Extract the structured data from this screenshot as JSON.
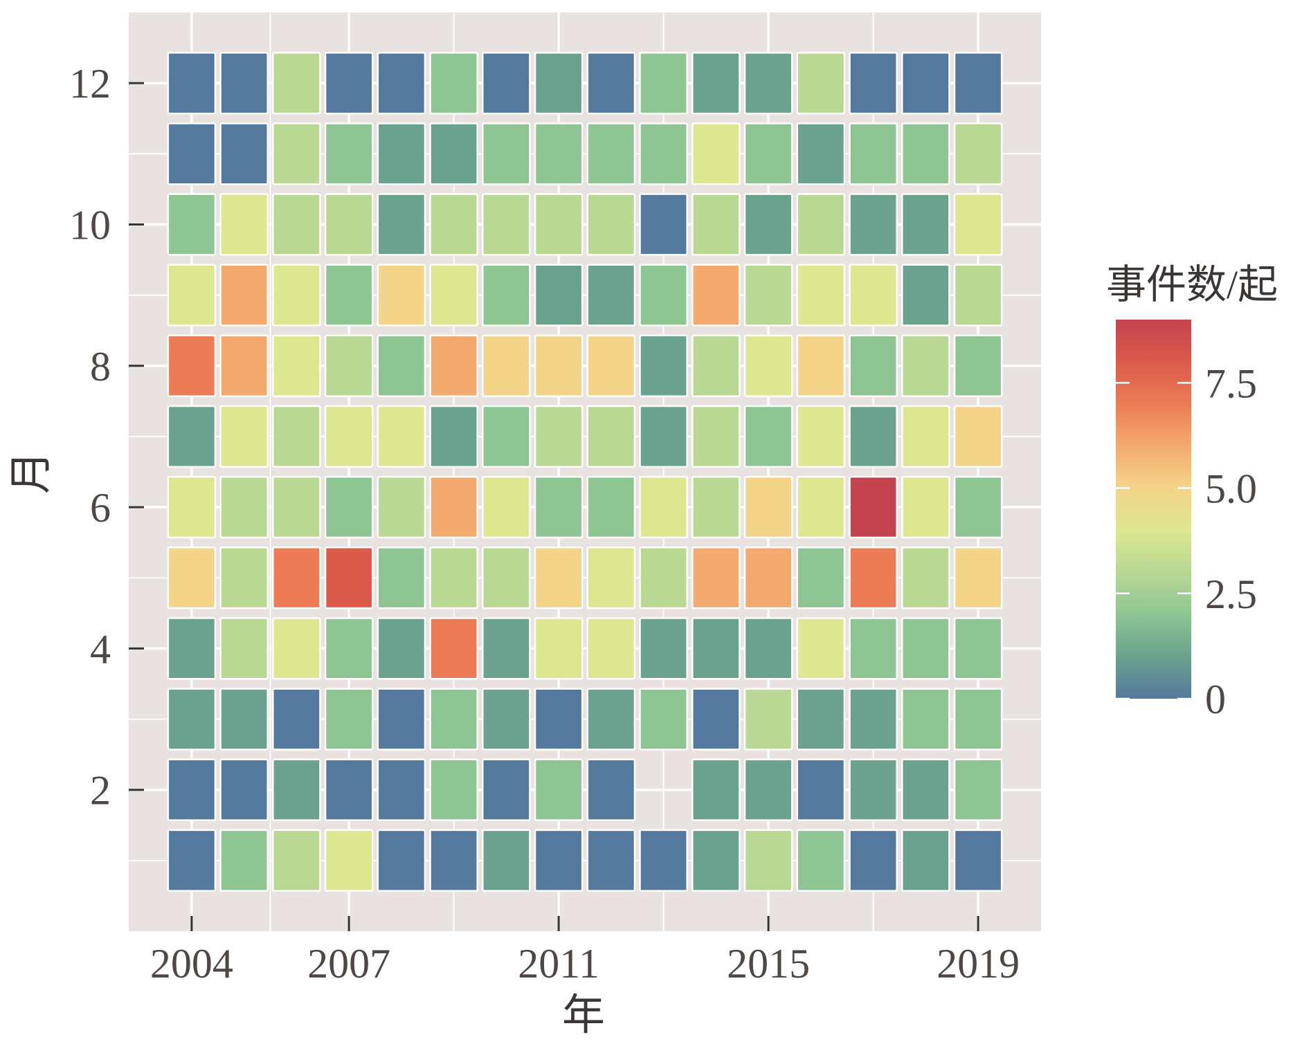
{
  "chart_data": {
    "type": "heatmap",
    "xlabel": "年",
    "ylabel": "月",
    "x": [
      2004,
      2005,
      2006,
      2007,
      2008,
      2009,
      2010,
      2011,
      2012,
      2013,
      2014,
      2015,
      2016,
      2017,
      2018,
      2019
    ],
    "y": [
      1,
      2,
      3,
      4,
      5,
      6,
      7,
      8,
      9,
      10,
      11,
      12
    ],
    "z": [
      [
        0,
        2,
        3,
        4,
        0,
        0,
        1,
        0,
        0,
        0,
        1,
        3,
        2,
        0,
        1,
        0
      ],
      [
        0,
        0,
        1,
        0,
        0,
        2,
        0,
        2,
        0,
        null,
        1,
        1,
        0,
        1,
        1,
        2
      ],
      [
        1,
        1,
        0,
        2,
        0,
        2,
        1,
        0,
        1,
        2,
        0,
        3,
        1,
        1,
        2,
        2
      ],
      [
        1,
        3,
        4,
        2,
        1,
        7,
        1,
        4,
        4,
        1,
        1,
        1,
        4,
        2,
        2,
        2
      ],
      [
        5,
        3,
        7,
        8,
        2,
        3,
        3,
        5,
        4,
        3,
        6,
        6,
        2,
        7,
        3,
        5
      ],
      [
        4,
        3,
        3,
        2,
        3,
        6,
        4,
        2,
        2,
        4,
        3,
        5,
        4,
        9,
        4,
        2
      ],
      [
        1,
        4,
        3,
        4,
        4,
        1,
        2,
        3,
        3,
        1,
        3,
        2,
        4,
        1,
        4,
        5
      ],
      [
        7,
        6,
        4,
        3,
        2,
        6,
        5,
        5,
        5,
        1,
        3,
        4,
        5,
        2,
        3,
        2
      ],
      [
        4,
        6,
        4,
        2,
        5,
        4,
        2,
        1,
        1,
        2,
        6,
        3,
        4,
        4,
        1,
        3
      ],
      [
        2,
        4,
        3,
        3,
        1,
        3,
        3,
        3,
        3,
        0,
        3,
        1,
        3,
        1,
        1,
        4
      ],
      [
        0,
        0,
        3,
        2,
        1,
        1,
        2,
        2,
        2,
        2,
        4,
        2,
        1,
        2,
        2,
        3
      ],
      [
        0,
        0,
        3,
        0,
        0,
        2,
        0,
        1,
        0,
        2,
        1,
        1,
        3,
        0,
        0,
        0
      ]
    ],
    "xlim": [
      2002.8,
      2020.2
    ],
    "ylim": [
      0,
      13
    ],
    "xticks": [
      2004,
      2007,
      2011,
      2015,
      2019
    ],
    "xtick_labels": [
      "2004",
      "2007",
      "2011",
      "2015",
      "2019"
    ],
    "x_minor_breaks": [
      2005.5,
      2009,
      2013,
      2017
    ],
    "yticks": [
      2,
      4,
      6,
      8,
      10,
      12
    ],
    "ytick_labels": [
      "2",
      "4",
      "6",
      "8",
      "10",
      "12"
    ],
    "y_minor_breaks": [
      1,
      3,
      5,
      7,
      9,
      11
    ],
    "grid": true,
    "legend": {
      "title": "事件数/起",
      "position": "right",
      "range": [
        0,
        9
      ],
      "ticks": [
        0,
        2.5,
        5,
        7.5
      ],
      "tick_labels": [
        "0",
        "2.5",
        "5.0",
        "7.5"
      ]
    },
    "colorscale": [
      [
        0,
        "#55799c"
      ],
      [
        1,
        "#6ba28f"
      ],
      [
        2,
        "#8ec592"
      ],
      [
        3,
        "#b8d894"
      ],
      [
        4,
        "#dce790"
      ],
      [
        5,
        "#f4d489"
      ],
      [
        6,
        "#f4aa6e"
      ],
      [
        7,
        "#eb7c55"
      ],
      [
        8,
        "#dc5a4b"
      ],
      [
        9,
        "#c3434f"
      ]
    ],
    "colors": {
      "panel_background": "#e8e3e0",
      "gridline": "#ffffff",
      "tile_border": "#ffffff",
      "axis_text": "#4f4744",
      "axis_title": "#3b3533",
      "legend_tick": "#ffffff"
    }
  }
}
